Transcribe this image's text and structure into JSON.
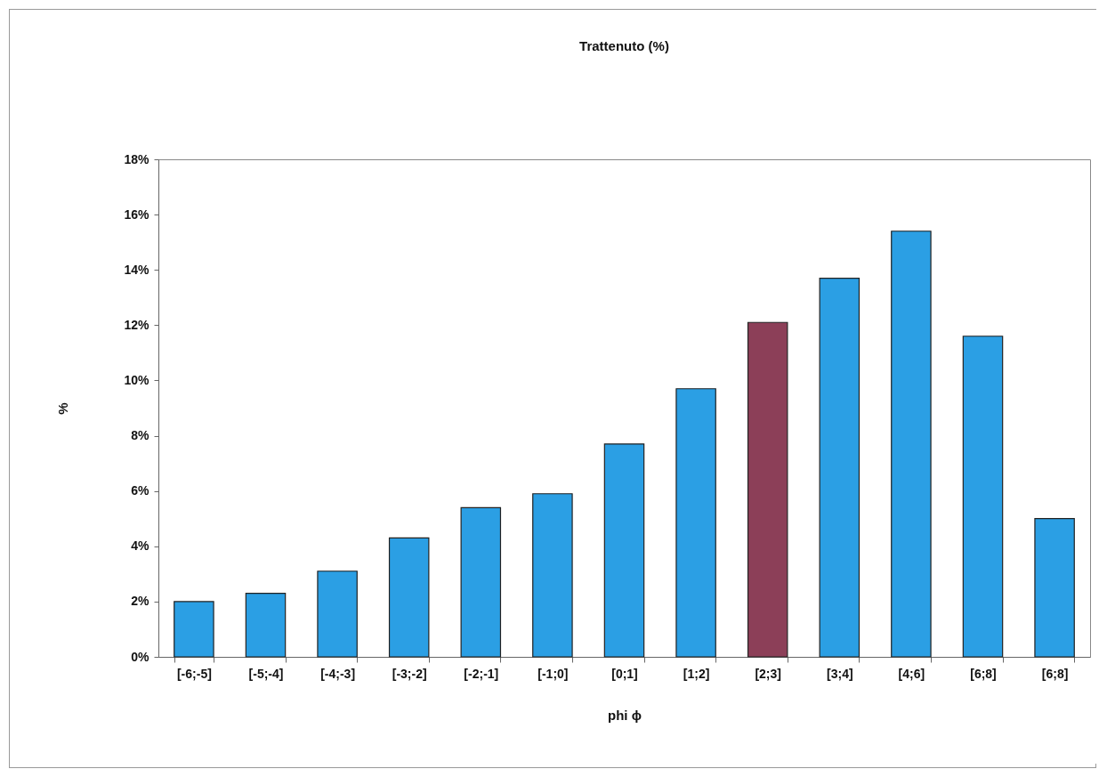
{
  "chart_data": {
    "type": "bar",
    "title": "Trattenuto (%)",
    "xlabel": "phi ϕ",
    "ylabel": "%",
    "categories": [
      "[-6;-5]",
      "[-5;-4]",
      "[-4;-3]",
      "[-3;-2]",
      "[-2;-1]",
      "[-1;0]",
      "[0;1]",
      "[1;2]",
      "[2;3]",
      "[3;4]",
      "[4;6]",
      "[6;8]",
      "[6;8]"
    ],
    "values": [
      2.0,
      2.3,
      3.1,
      4.3,
      5.4,
      5.9,
      7.7,
      9.7,
      12.1,
      13.7,
      15.4,
      11.6,
      5.0
    ],
    "colors": [
      "#2b9fe4",
      "#2b9fe4",
      "#2b9fe4",
      "#2b9fe4",
      "#2b9fe4",
      "#2b9fe4",
      "#2b9fe4",
      "#2b9fe4",
      "#8c3f58",
      "#2b9fe4",
      "#2b9fe4",
      "#2b9fe4",
      "#2b9fe4"
    ],
    "ylim": [
      0,
      18
    ],
    "yticks": [
      {
        "value": 0,
        "label": "0%"
      },
      {
        "value": 2,
        "label": "2%"
      },
      {
        "value": 4,
        "label": "4%"
      },
      {
        "value": 6,
        "label": "6%"
      },
      {
        "value": 8,
        "label": "8%"
      },
      {
        "value": 10,
        "label": "10%"
      },
      {
        "value": 12,
        "label": "12%"
      },
      {
        "value": 14,
        "label": "14%"
      },
      {
        "value": 16,
        "label": "16%"
      },
      {
        "value": 18,
        "label": "18%"
      }
    ],
    "grid": false
  }
}
